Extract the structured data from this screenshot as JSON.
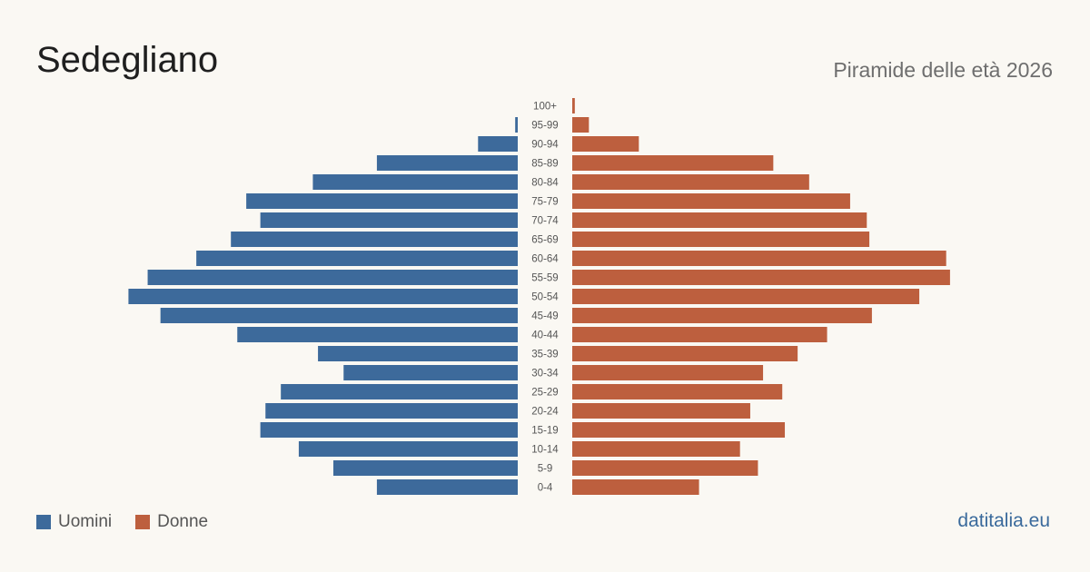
{
  "header": {
    "title": "Sedegliano",
    "subtitle": "Piramide delle età 2026"
  },
  "legend": {
    "men_label": "Uomini",
    "women_label": "Donne"
  },
  "footer": {
    "brand": "datitalia.eu"
  },
  "colors": {
    "men": "#3d6a9b",
    "women": "#bd5f3e",
    "label": "#555555"
  },
  "chart_data": {
    "type": "bar",
    "orientation": "horizontal-pyramid",
    "categories": [
      "100+",
      "95-99",
      "90-94",
      "85-89",
      "80-84",
      "75-79",
      "70-74",
      "65-69",
      "60-64",
      "55-59",
      "50-54",
      "45-49",
      "40-44",
      "35-39",
      "30-34",
      "25-29",
      "20-24",
      "15-19",
      "10-14",
      "5-9",
      "0-4"
    ],
    "series": [
      {
        "name": "Uomini",
        "values": [
          0,
          2,
          31,
          110,
          160,
          212,
          201,
          224,
          251,
          289,
          304,
          279,
          219,
          156,
          136,
          185,
          197,
          201,
          171,
          144,
          110
        ]
      },
      {
        "name": "Donne",
        "values": [
          2,
          13,
          52,
          157,
          185,
          217,
          230,
          232,
          292,
          295,
          271,
          234,
          199,
          176,
          149,
          164,
          139,
          166,
          131,
          145,
          99
        ]
      }
    ],
    "xlim": [
      0,
      305
    ],
    "grid": false,
    "legend_position": "bottom-left"
  }
}
